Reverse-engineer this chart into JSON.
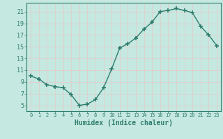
{
  "x": [
    0,
    1,
    2,
    3,
    4,
    5,
    6,
    7,
    8,
    9,
    10,
    11,
    12,
    13,
    14,
    15,
    16,
    17,
    18,
    19,
    20,
    21,
    22,
    23
  ],
  "y": [
    10,
    9.5,
    8.5,
    8.2,
    8.0,
    6.8,
    5.0,
    5.2,
    6.0,
    8.0,
    11.2,
    14.8,
    15.5,
    16.5,
    18.0,
    19.2,
    21.0,
    21.2,
    21.5,
    21.2,
    20.8,
    18.5,
    17.0,
    15.2
  ],
  "line_color": "#2e7d6e",
  "marker": "+",
  "markersize": 4,
  "markeredgewidth": 1.2,
  "linewidth": 1.0,
  "bg_color": "#c5e8e0",
  "grid_color": "#e8c8c8",
  "tick_color": "#2e7d6e",
  "label_color": "#2e7d6e",
  "xlabel": "Humidex (Indice chaleur)",
  "xlabel_fontsize": 7,
  "ylabel_ticks": [
    5,
    7,
    9,
    11,
    13,
    15,
    17,
    19,
    21
  ],
  "ylim": [
    4,
    22.5
  ],
  "xlim": [
    -0.5,
    23.5
  ]
}
